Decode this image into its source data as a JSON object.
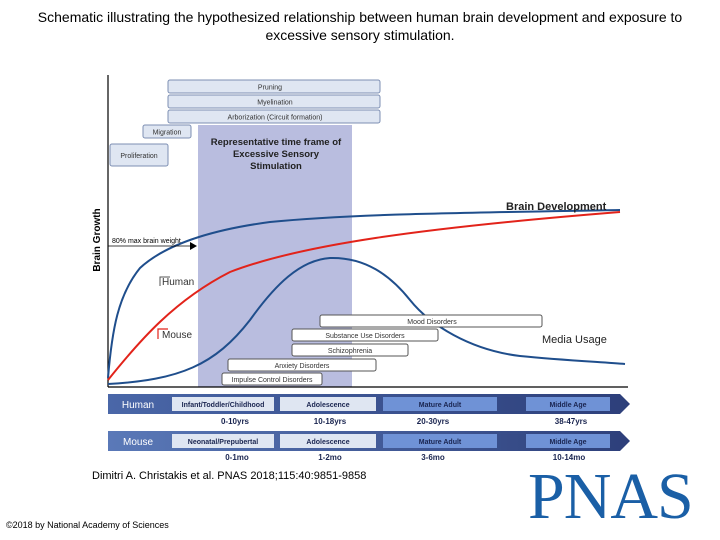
{
  "title": "Schematic illustrating the hypothesized relationship between human brain development and exposure to excessive sensory stimulation.",
  "axis": {
    "ylabel": "Brain Growth"
  },
  "stage_boxes": [
    "Pruning",
    "Myelination",
    "Arborization (Circuit formation)",
    "Migration",
    "Proliferation"
  ],
  "highlight": {
    "label": "Representative time frame of Excessive Sensory Stimulation"
  },
  "curves": {
    "brain_development": "Brain Development",
    "human": "Human",
    "mouse": "Mouse",
    "media_usage": "Media Usage",
    "max_weight_note": "80% max brain weight"
  },
  "disorders": [
    "Mood Disorders",
    "Substance Use Disorders",
    "Schizophrenia",
    "Anxiety Disorders",
    "Impulse Control Disorders"
  ],
  "timeline": {
    "human": {
      "label": "Human",
      "stages": [
        "Infant/Toddler/Childhood",
        "Adolescence",
        "Mature Adult",
        "Middle Age"
      ],
      "ages": [
        "0-10yrs",
        "10-18yrs",
        "20-30yrs",
        "38-47yrs"
      ]
    },
    "mouse": {
      "label": "Mouse",
      "stages": [
        "Neonatal/Prepubertal",
        "Adolescence",
        "Mature Adult",
        "Middle Age"
      ],
      "ages": [
        "0-1mo",
        "1-2mo",
        "3-6mo",
        "10-14mo"
      ]
    }
  },
  "citation": "Dimitri A. Christakis et al. PNAS 2018;115:40:9851-9858",
  "copyright": "©2018 by National Academy of Sciences",
  "logo": "PNAS",
  "colors": {
    "highlight": "#b9bddf",
    "blue_curve": "#1f4e8c",
    "red_curve": "#e2231a",
    "bar_blue": "#3b5a9a",
    "box_fill": "#dfe6f2"
  }
}
